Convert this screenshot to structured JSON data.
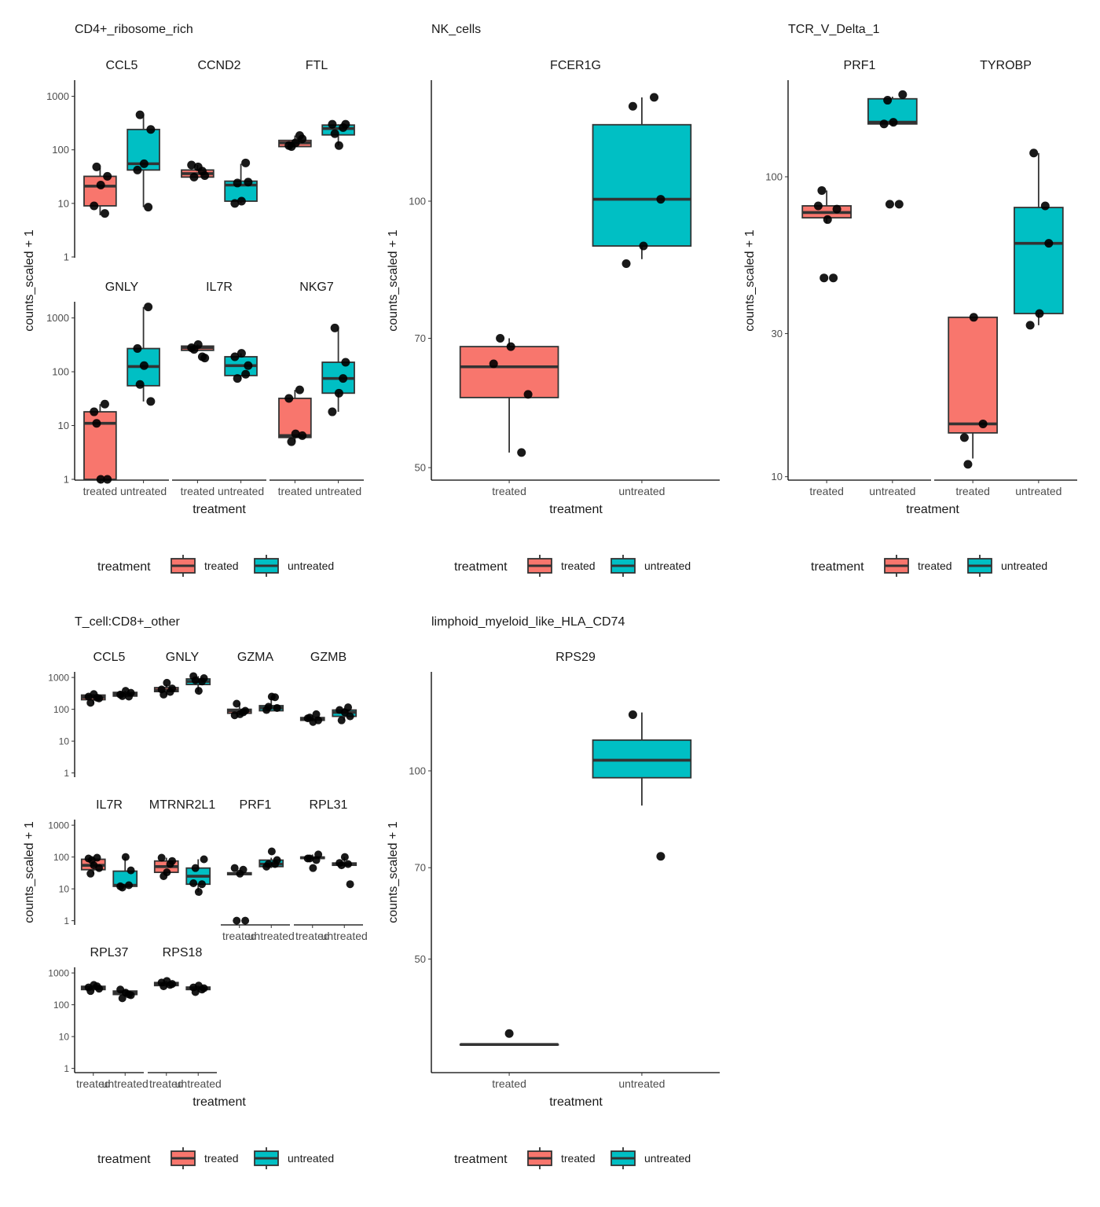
{
  "colors": {
    "treated": "#F8766D",
    "untreated": "#00BFC4",
    "line": "#333333",
    "point": "#000000"
  },
  "legend": {
    "title": "treatment",
    "labels": [
      "treated",
      "untreated"
    ]
  },
  "chart_data": [
    {
      "type": "box",
      "title": "CD4+_ribosome_rich",
      "xlabel": "treatment",
      "ylabel": "counts_scaled + 1",
      "scale": "log10",
      "ylim": [
        1,
        2000
      ],
      "yticks": [
        1,
        10,
        100,
        1000
      ],
      "ytick_labels": [
        "1",
        "10",
        "100",
        "1000"
      ],
      "categories": [
        "treated",
        "untreated"
      ],
      "facets": [
        {
          "gene": "CCL5",
          "groups": [
            {
              "q1": 9,
              "median": 21,
              "q3": 32,
              "lo": 6,
              "hi": 46,
              "points": [
                48,
                32,
                22,
                9,
                6.5
              ]
            },
            {
              "q1": 42,
              "median": 55,
              "q3": 240,
              "lo": 8.5,
              "hi": 450,
              "points": [
                450,
                240,
                55,
                42,
                8.5
              ]
            }
          ]
        },
        {
          "gene": "CCND2",
          "groups": [
            {
              "q1": 31,
              "median": 36,
              "q3": 42,
              "lo": 30,
              "hi": 52,
              "points": [
                31,
                33,
                48,
                52,
                40
              ]
            },
            {
              "q1": 11,
              "median": 22,
              "q3": 26,
              "lo": 10,
              "hi": 55,
              "points": [
                24,
                25,
                11,
                10,
                57
              ]
            }
          ]
        },
        {
          "gene": "FTL",
          "groups": [
            {
              "q1": 115,
              "median": 135,
              "q3": 150,
              "lo": 110,
              "hi": 185,
              "points": [
                115,
                160,
                135,
                120,
                185
              ]
            },
            {
              "q1": 190,
              "median": 250,
              "q3": 290,
              "lo": 120,
              "hi": 300,
              "points": [
                200,
                300,
                120,
                300,
                260
              ]
            }
          ]
        },
        {
          "gene": "GNLY",
          "groups": [
            {
              "q1": 1,
              "median": 11,
              "q3": 18,
              "lo": 1,
              "hi": 25,
              "points": [
                11,
                1,
                1,
                18,
                25
              ]
            },
            {
              "q1": 55,
              "median": 125,
              "q3": 270,
              "lo": 28,
              "hi": 1600,
              "points": [
                58,
                28,
                130,
                270,
                1600
              ]
            }
          ]
        },
        {
          "gene": "IL7R",
          "groups": [
            {
              "q1": 250,
              "median": 280,
              "q3": 300,
              "lo": 240,
              "hi": 320,
              "points": [
                260,
                180,
                320,
                280,
                190
              ]
            },
            {
              "q1": 85,
              "median": 130,
              "q3": 190,
              "lo": 75,
              "hi": 220,
              "points": [
                75,
                130,
                220,
                190,
                90
              ]
            }
          ]
        },
        {
          "gene": "NKG7",
          "groups": [
            {
              "q1": 6,
              "median": 6.5,
              "q3": 32,
              "lo": 5,
              "hi": 46,
              "points": [
                5,
                6.5,
                7,
                32,
                46
              ]
            },
            {
              "q1": 40,
              "median": 75,
              "q3": 150,
              "lo": 18,
              "hi": 650,
              "points": [
                650,
                150,
                40,
                18,
                75
              ]
            }
          ]
        }
      ]
    },
    {
      "type": "box",
      "title": "NK_cells",
      "xlabel": "treatment",
      "ylabel": "counts_scaled + 1",
      "scale": "log10",
      "ylim": [
        48.5,
        137
      ],
      "yticks": [
        50,
        70,
        100
      ],
      "ytick_labels": [
        "50",
        "70",
        "100"
      ],
      "categories": [
        "treated",
        "untreated"
      ],
      "facets": [
        {
          "gene": "FCER1G",
          "groups": [
            {
              "q1": 60,
              "median": 65,
              "q3": 68.5,
              "lo": 52,
              "hi": 70,
              "points": [
                70,
                60.5,
                68.5,
                65.5,
                52
              ]
            },
            {
              "q1": 89,
              "median": 100.5,
              "q3": 122,
              "lo": 86,
              "hi": 131,
              "points": [
                128,
                100.5,
                89,
                85,
                131
              ]
            }
          ]
        }
      ]
    },
    {
      "type": "box",
      "title": "TCR_V_Delta_1",
      "xlabel": "treatment",
      "ylabel": "counts_scaled + 1",
      "scale": "log10",
      "ylim": [
        9.8,
        210
      ],
      "yticks": [
        10,
        30,
        100
      ],
      "ytick_labels": [
        "10",
        "30",
        "100"
      ],
      "categories": [
        "treated",
        "untreated"
      ],
      "facets": [
        {
          "gene": "PRF1",
          "groups": [
            {
              "q1": 73,
              "median": 76,
              "q3": 80,
              "lo": 70,
              "hi": 90,
              "points": [
                90,
                78,
                72,
                80,
                46,
                46
              ]
            },
            {
              "q1": 150,
              "median": 152,
              "q3": 182,
              "lo": 148,
              "hi": 185,
              "points": [
                180,
                188,
                152,
                150,
                81,
                81
              ]
            }
          ]
        },
        {
          "gene": "TYROBP",
          "groups": [
            {
              "q1": 14,
              "median": 15,
              "q3": 34,
              "lo": 11.5,
              "hi": 34,
              "points": [
                11,
                15,
                34,
                13.5
              ]
            },
            {
              "q1": 35,
              "median": 60,
              "q3": 79,
              "lo": 32,
              "hi": 120,
              "points": [
                120,
                60,
                35,
                32,
                80
              ]
            }
          ]
        }
      ]
    },
    {
      "type": "box",
      "title": "T_cell:CD8+_other",
      "xlabel": "treatment",
      "ylabel": "counts_scaled + 1",
      "scale": "log10",
      "ylim": [
        0.78,
        1500
      ],
      "yticks": [
        1,
        10,
        100,
        1000
      ],
      "ytick_labels": [
        "1",
        "10",
        "100",
        "1000"
      ],
      "categories": [
        "treated",
        "untreated"
      ],
      "facets": [
        {
          "gene": "CCL5",
          "groups": [
            {
              "q1": 200,
              "median": 240,
              "q3": 280,
              "lo": 150,
              "hi": 300,
              "points": [
                160,
                220,
                300,
                250,
                230
              ]
            },
            {
              "q1": 260,
              "median": 300,
              "q3": 340,
              "lo": 250,
              "hi": 380,
              "points": [
                260,
                330,
                380,
                290,
                250
              ]
            }
          ]
        },
        {
          "gene": "GNLY",
          "groups": [
            {
              "q1": 360,
              "median": 400,
              "q3": 480,
              "lo": 280,
              "hi": 600,
              "points": [
                290,
                450,
                680,
                420,
                350
              ]
            },
            {
              "q1": 600,
              "median": 750,
              "q3": 900,
              "lo": 350,
              "hi": 1100,
              "points": [
                820,
                950,
                380,
                1100,
                750
              ]
            }
          ]
        },
        {
          "gene": "GZMA",
          "groups": [
            {
              "q1": 75,
              "median": 90,
              "q3": 100,
              "lo": 65,
              "hi": 150,
              "points": [
                150,
                90,
                70,
                65,
                80
              ]
            },
            {
              "q1": 90,
              "median": 110,
              "q3": 130,
              "lo": 85,
              "hi": 250,
              "points": [
                120,
                110,
                250,
                95,
                240
              ]
            }
          ]
        },
        {
          "gene": "GZMB",
          "groups": [
            {
              "q1": 45,
              "median": 50,
              "q3": 55,
              "lo": 42,
              "hi": 65,
              "points": [
                55,
                45,
                40,
                52,
                70
              ]
            },
            {
              "q1": 60,
              "median": 80,
              "q3": 95,
              "lo": 45,
              "hi": 110,
              "points": [
                45,
                60,
                80,
                95,
                115
              ]
            }
          ]
        },
        {
          "gene": "IL7R",
          "groups": [
            {
              "q1": 40,
              "median": 55,
              "q3": 85,
              "lo": 30,
              "hi": 95,
              "points": [
                30,
                45,
                55,
                90,
                95,
                80
              ]
            },
            {
              "q1": 12,
              "median": 13,
              "q3": 36,
              "lo": 11,
              "hi": 100,
              "points": [
                11,
                38,
                100,
                12,
                13
              ]
            }
          ]
        },
        {
          "gene": "MTRNR2L1",
          "groups": [
            {
              "q1": 33,
              "median": 50,
              "q3": 75,
              "lo": 25,
              "hi": 95,
              "points": [
                25,
                75,
                33,
                95,
                60
              ]
            },
            {
              "q1": 14,
              "median": 25,
              "q3": 45,
              "lo": 8,
              "hi": 85,
              "points": [
                45,
                85,
                8,
                15,
                14
              ]
            }
          ]
        },
        {
          "gene": "PRF1",
          "groups": [
            {
              "q1": 28,
              "median": 30,
              "q3": 32,
              "lo": 28,
              "hi": 35,
              "points": [
                1,
                1,
                30,
                45,
                40
              ]
            },
            {
              "q1": 50,
              "median": 60,
              "q3": 80,
              "lo": 45,
              "hi": 95,
              "points": [
                60,
                80,
                150,
                50,
                60
              ]
            }
          ]
        },
        {
          "gene": "RPL31",
          "groups": [
            {
              "q1": 90,
              "median": 95,
              "q3": 100,
              "lo": 85,
              "hi": 120,
              "points": [
                90,
                120,
                45,
                90,
                80
              ]
            },
            {
              "q1": 55,
              "median": 60,
              "q3": 65,
              "lo": 50,
              "hi": 100,
              "points": [
                55,
                14,
                100,
                65,
                60
              ]
            }
          ]
        }
      ]
    },
    {
      "type": "box",
      "title": "limphoid_myeloid_like_HLA_CD74",
      "xlabel": "treatment",
      "ylabel": "counts_scaled + 1",
      "scale": "log10",
      "ylim": [
        33,
        144
      ],
      "yticks": [
        50,
        70,
        100
      ],
      "ytick_labels": [
        "50",
        "70",
        "100"
      ],
      "categories": [
        "treated",
        "untreated"
      ],
      "facets": [
        {
          "gene": "RPS29",
          "groups": [
            {
              "q1": 36.5,
              "median": 36.5,
              "q3": 36.5,
              "lo": 36.5,
              "hi": 36.5,
              "points": [
                38
              ]
            },
            {
              "q1": 97.5,
              "median": 104,
              "q3": 112,
              "lo": 88,
              "hi": 124,
              "points": [
                123,
                73
              ]
            }
          ]
        }
      ]
    }
  ],
  "extra_facets": [
    {
      "panel": 3,
      "gene": "RPL37",
      "groups": [
        {
          "q1": 300,
          "median": 330,
          "q3": 380,
          "lo": 270,
          "hi": 420,
          "points": [
            270,
            320,
            420,
            350,
            380
          ]
        },
        {
          "q1": 210,
          "median": 240,
          "q3": 270,
          "lo": 180,
          "hi": 300,
          "points": [
            160,
            200,
            240,
            300,
            210
          ]
        }
      ]
    },
    {
      "panel": 3,
      "gene": "RPS18",
      "groups": [
        {
          "q1": 400,
          "median": 450,
          "q3": 500,
          "lo": 350,
          "hi": 560,
          "points": [
            380,
            450,
            560,
            500,
            420
          ]
        },
        {
          "q1": 300,
          "median": 330,
          "q3": 360,
          "lo": 250,
          "hi": 400,
          "points": [
            250,
            330,
            400,
            350,
            300
          ]
        }
      ]
    }
  ]
}
